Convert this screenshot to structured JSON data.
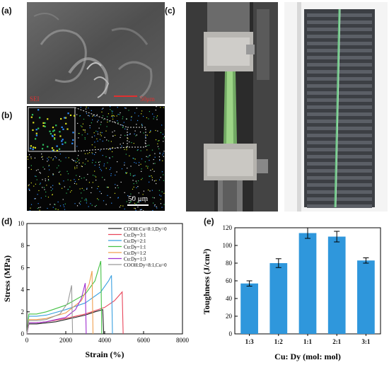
{
  "panel_labels": {
    "a": "(a)",
    "b": "(b)",
    "c": "(c)",
    "d": "(d)",
    "e": "(e)"
  },
  "sem": {
    "detector": "SEI",
    "scalebar": "50μm"
  },
  "eds": {
    "scalebar": "50 μm"
  },
  "chart_data": [
    {
      "type": "line",
      "ylabel": "Stress (MPa)",
      "xlabel": "Strain (%)",
      "xlim": [
        0,
        8000
      ],
      "ylim": [
        0,
        10
      ],
      "xticks": [
        0,
        2000,
        4000,
        6000,
        8000
      ],
      "yticks": [
        0,
        2,
        4,
        6,
        8,
        10
      ],
      "legend_position": "top-right",
      "series": [
        {
          "name": "COOH:Cu=8:1,Dy=0",
          "color": "#222222",
          "x": [
            0,
            100,
            500,
            1000,
            1500,
            2000,
            2500,
            3000,
            3500,
            3900,
            3950
          ],
          "y": [
            0,
            0.9,
            0.9,
            1.0,
            1.1,
            1.3,
            1.5,
            1.7,
            2.0,
            2.2,
            0
          ]
        },
        {
          "name": "Cu:Dy=3:1",
          "color": "#e8455a",
          "x": [
            0,
            100,
            500,
            1000,
            2000,
            3000,
            4000,
            4500,
            4900,
            4950
          ],
          "y": [
            0,
            1.0,
            1.0,
            1.1,
            1.4,
            1.8,
            2.4,
            3.0,
            3.8,
            0
          ]
        },
        {
          "name": "Cu:Dy=2:1",
          "color": "#3aa0e0",
          "x": [
            0,
            100,
            500,
            1000,
            2000,
            3000,
            3800,
            4200,
            4350,
            4400
          ],
          "y": [
            0,
            1.6,
            1.6,
            1.7,
            2.2,
            2.8,
            3.8,
            4.8,
            5.3,
            0
          ]
        },
        {
          "name": "Cu:Dy=1:1",
          "color": "#44c144",
          "x": [
            0,
            100,
            500,
            1000,
            2000,
            3000,
            3500,
            3800,
            3850
          ],
          "y": [
            0,
            1.8,
            1.8,
            2.0,
            2.6,
            3.6,
            4.8,
            6.6,
            0
          ]
        },
        {
          "name": "Cu:Dy=1:2",
          "color": "#f0a050",
          "x": [
            0,
            100,
            500,
            1000,
            2000,
            2800,
            3200,
            3350,
            3400
          ],
          "y": [
            0,
            1.3,
            1.3,
            1.4,
            1.9,
            3.0,
            4.5,
            5.7,
            0
          ]
        },
        {
          "name": "Cu:Dy=1:3",
          "color": "#a030d0",
          "x": [
            0,
            100,
            500,
            1000,
            2000,
            2500,
            2800,
            3000,
            3050
          ],
          "y": [
            0,
            1.0,
            1.0,
            1.1,
            1.5,
            2.2,
            3.2,
            4.6,
            0
          ]
        },
        {
          "name": "COOH:Dy=8:1,Cu=0",
          "color": "#999999",
          "x": [
            0,
            100,
            500,
            1000,
            1700,
            2100,
            2300,
            2350
          ],
          "y": [
            0,
            1.2,
            1.2,
            1.3,
            1.8,
            2.8,
            4.4,
            0
          ]
        }
      ]
    },
    {
      "type": "bar",
      "ylabel": "Toughness (J/cm³)",
      "xlabel": "Cu: Dy (mol: mol)",
      "ylim": [
        0,
        120
      ],
      "yticks": [
        0,
        20,
        40,
        60,
        80,
        100,
        120
      ],
      "categories": [
        "1:3",
        "1:2",
        "1:1",
        "2:1",
        "3:1"
      ],
      "values": [
        57,
        80,
        114,
        110,
        83
      ],
      "errors": [
        3,
        5,
        6,
        6,
        3
      ],
      "bar_color": "#2f97dc"
    }
  ]
}
